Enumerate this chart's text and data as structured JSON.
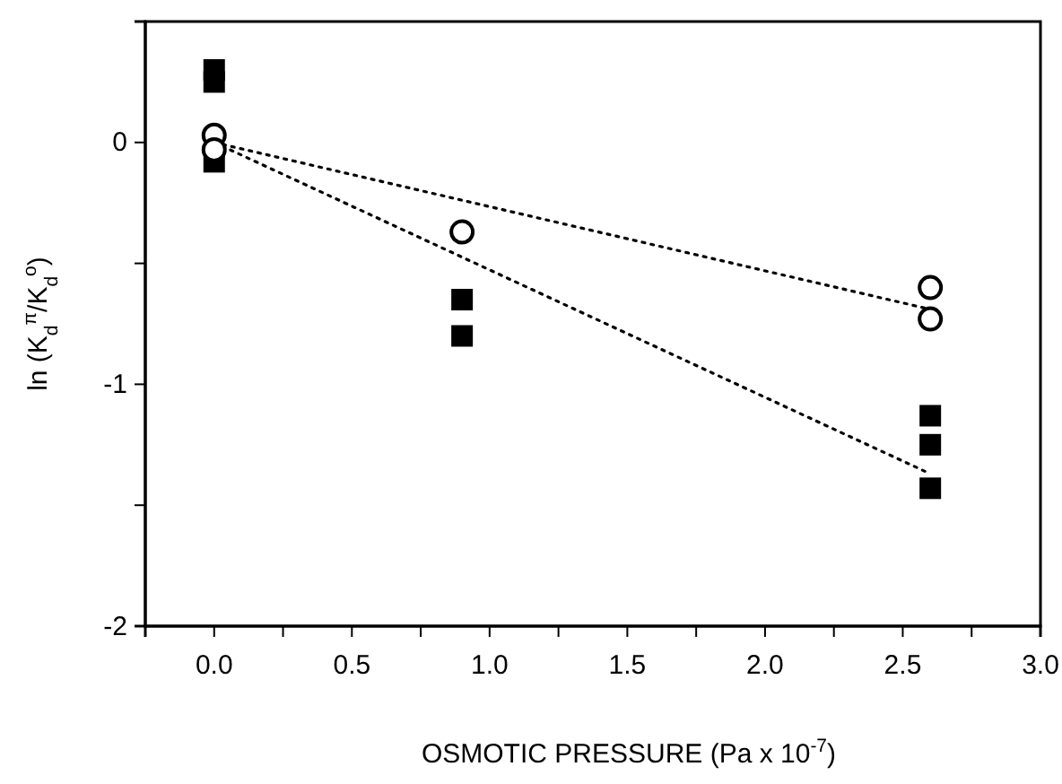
{
  "chart_data": {
    "type": "scatter",
    "xlabel": "OSMOTIC PRESSURE (Pa x 10$^{-7}$)",
    "ylabel": "ln (K$_{d}$$^{π}$/K$_{d}$$^{o}$)",
    "xlim": [
      -0.25,
      3.0
    ],
    "xticks": [
      {
        "value": 0,
        "label": "0.0"
      },
      {
        "value": 0.25,
        "label": null
      },
      {
        "value": 0.5,
        "label": "0.5"
      },
      {
        "value": 0.75,
        "label": null
      },
      {
        "value": 1,
        "label": "1.0"
      },
      {
        "value": 1.25,
        "label": null
      },
      {
        "value": 1.5,
        "label": "1.5"
      },
      {
        "value": 1.75,
        "label": null
      },
      {
        "value": 2,
        "label": "2.0"
      },
      {
        "value": 2.25,
        "label": null
      },
      {
        "value": 2.5,
        "label": "2.5"
      },
      {
        "value": 2.75,
        "label": null
      },
      {
        "value": 3,
        "label": "3.0"
      }
    ],
    "ylim": [
      -2,
      0.5
    ],
    "yticks": [
      -2,
      {
        "value": -1.5,
        "label": null
      },
      -1,
      {
        "value": -0.5,
        "label": null
      },
      0
    ],
    "series": [
      {
        "marker": "square",
        "color": "#000000",
        "x": [
          0,
          0,
          0,
          0.9,
          0.9,
          2.6,
          2.6,
          2.6
        ],
        "values": [
          0.3,
          0.25,
          -0.08,
          -0.65,
          -0.8,
          -1.13,
          -1.25,
          -1.43
        ]
      },
      {
        "marker": "circle",
        "color": "#000000",
        "x": [
          0,
          0,
          0.9,
          2.6,
          2.6
        ],
        "values": [
          0.03,
          -0.03,
          -0.37,
          -0.6,
          -0.73
        ]
      },
      {
        "type": "line",
        "marker": "none",
        "line_style": "dotted",
        "color": "#000000",
        "x": [
          0,
          2.6
        ],
        "values": [
          0,
          -0.69
        ]
      },
      {
        "type": "line",
        "marker": "none",
        "line_style": "dotted",
        "color": "#000000",
        "x": [
          0,
          2.6
        ],
        "values": [
          0,
          -1.37
        ]
      }
    ]
  }
}
